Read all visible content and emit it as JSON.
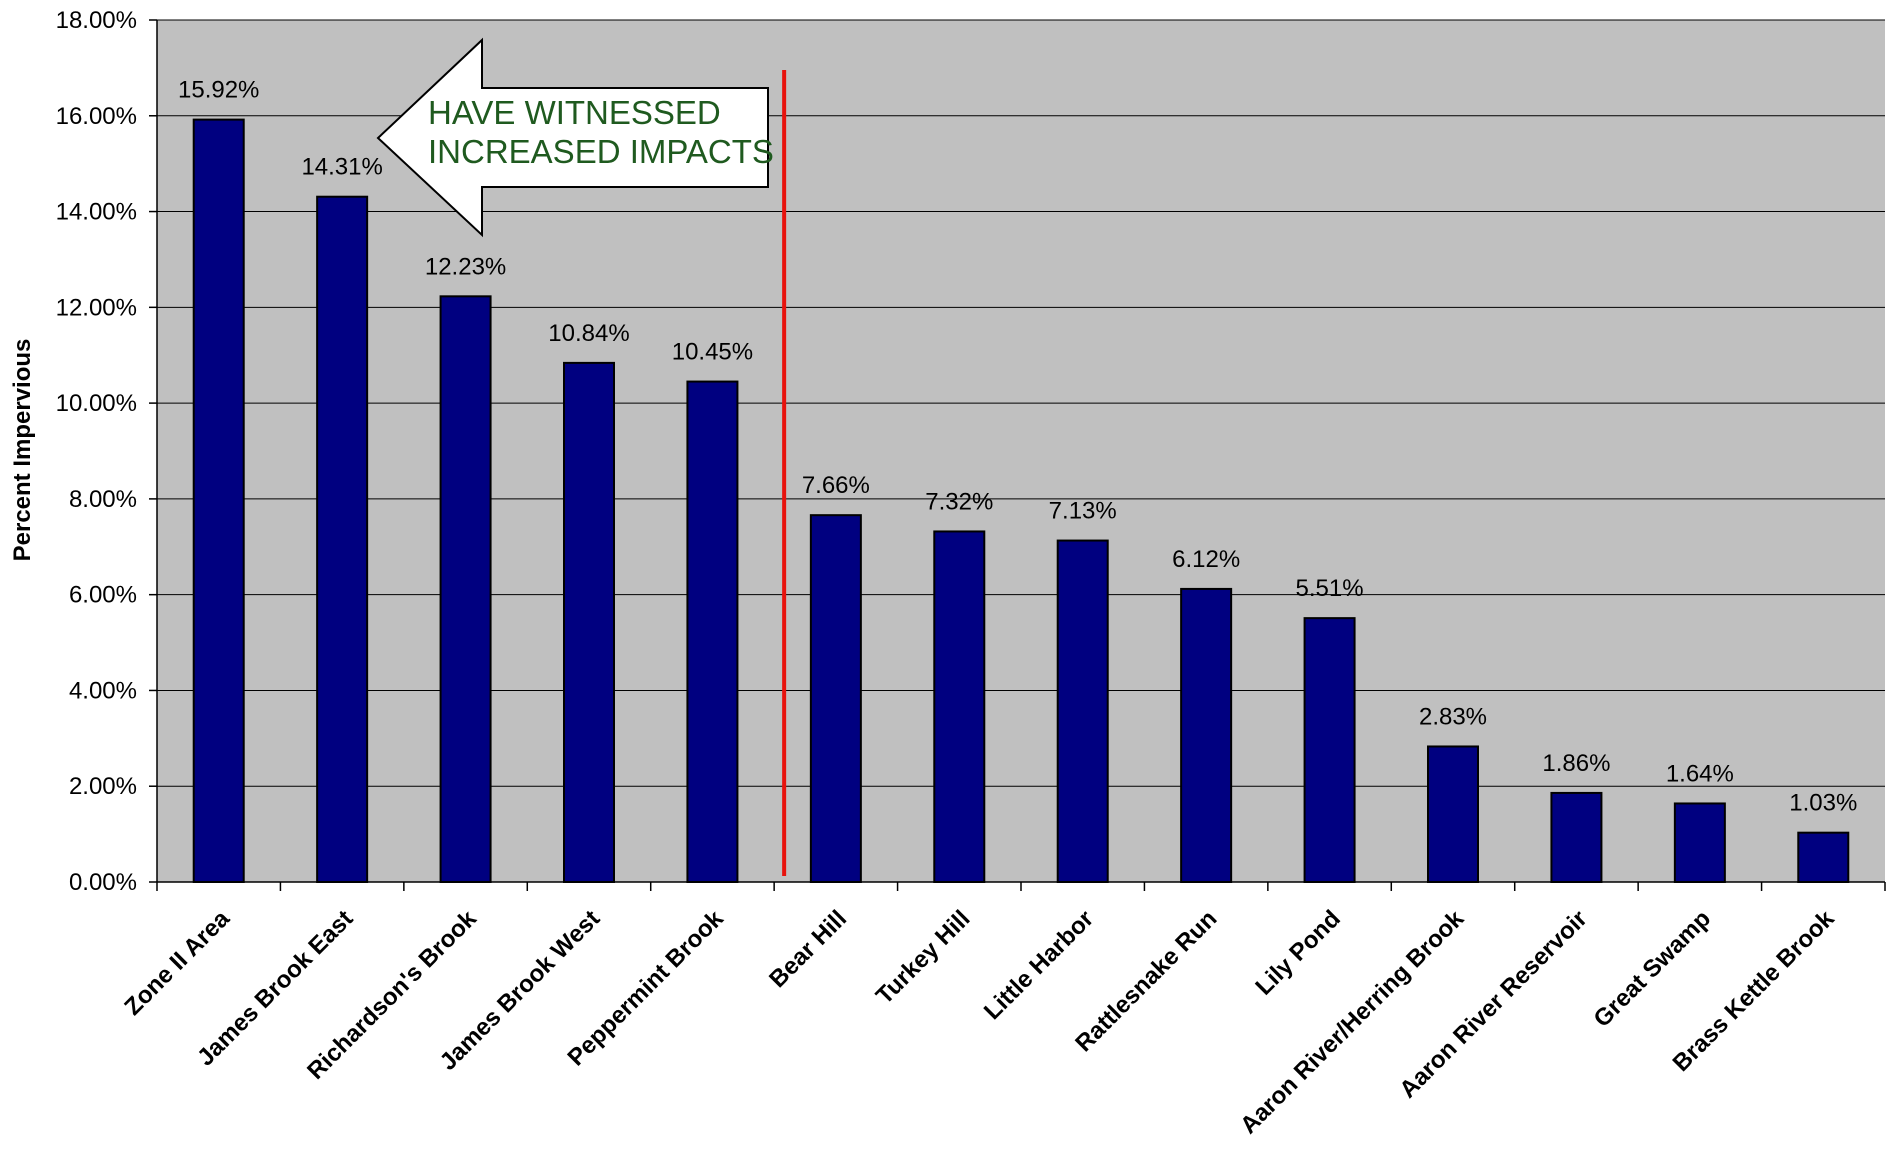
{
  "chart_data": {
    "type": "bar",
    "ylabel": "Percent Impervious",
    "ylim": [
      0,
      18
    ],
    "yticks": [
      0,
      2,
      4,
      6,
      8,
      10,
      12,
      14,
      16,
      18
    ],
    "ytick_labels": [
      "0.00%",
      "2.00%",
      "4.00%",
      "6.00%",
      "8.00%",
      "10.00%",
      "12.00%",
      "14.00%",
      "16.00%",
      "18.00%"
    ],
    "grid": true,
    "categories": [
      "Zone II Area",
      "James Brook East",
      "Richardson's Brook",
      "James Brook West",
      "Peppermint Brook",
      "Bear Hill",
      "Turkey Hill",
      "Little Harbor",
      "Rattlesnake Run",
      "Lily Pond",
      "Aaron River/Herring Brook",
      "Aaron River Reservoir",
      "Great Swamp",
      "Brass Kettle Brook"
    ],
    "values": [
      15.92,
      14.31,
      12.23,
      10.84,
      10.45,
      7.66,
      7.32,
      7.13,
      6.12,
      5.51,
      2.83,
      1.86,
      1.64,
      1.03
    ],
    "data_labels": [
      "15.92%",
      "14.31%",
      "12.23%",
      "10.84%",
      "10.45%",
      "7.66%",
      "7.32%",
      "7.13%",
      "6.12%",
      "5.51%",
      "2.83%",
      "1.86%",
      "1.64%",
      "1.03%"
    ],
    "annotations": [
      {
        "type": "arrow-callout",
        "text_lines": [
          "HAVE WITNESSED",
          "INCREASED IMPACTS"
        ],
        "direction": "left"
      },
      {
        "type": "vertical-divider",
        "between": [
          "Peppermint Brook",
          "Bear Hill"
        ],
        "color": "#e8120c"
      }
    ],
    "colors": {
      "bar": "#000080",
      "plot_background": "#c0c0c0",
      "gridline": "#000000",
      "divider": "#e8120c",
      "callout_text": "#1f5a1f"
    }
  }
}
